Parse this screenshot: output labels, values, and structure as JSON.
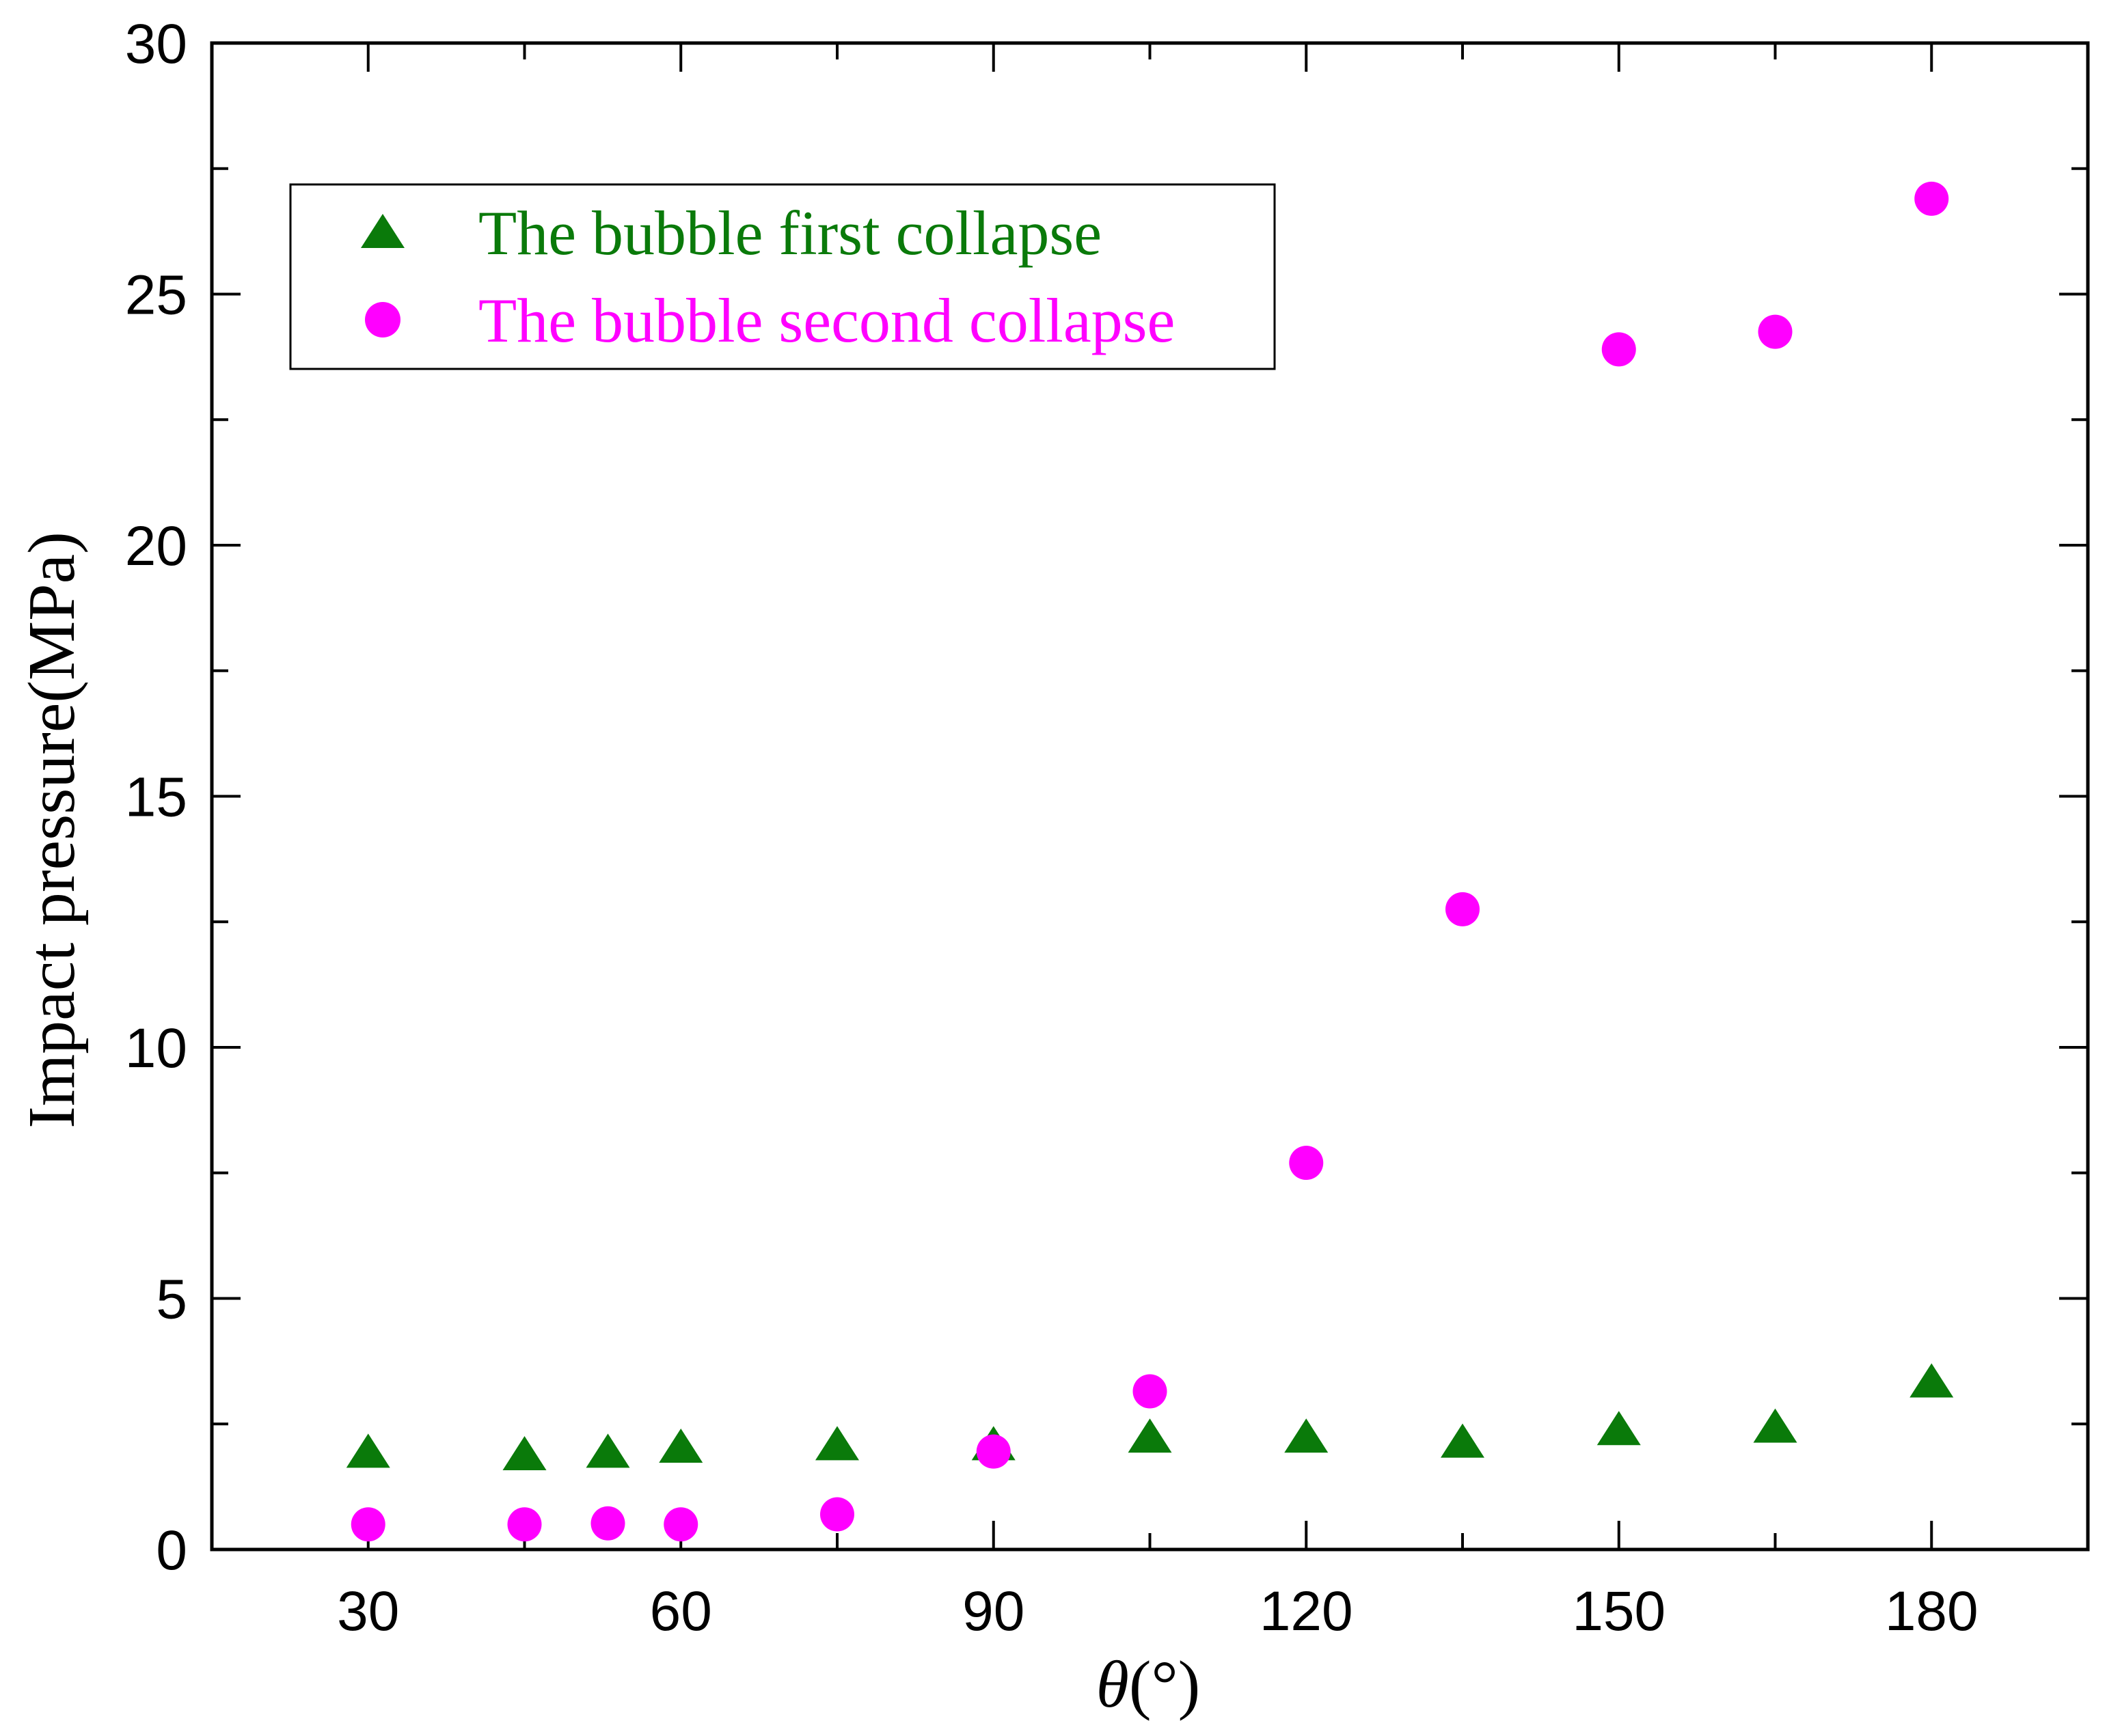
{
  "chart_data": {
    "type": "scatter",
    "title": "",
    "xlabel": "θ(°)",
    "xlabel_symbol": "θ",
    "xlabel_unit": "(°)",
    "ylabel": "Impact pressure(MPa)",
    "xlim": [
      15,
      195
    ],
    "ylim": [
      0,
      30
    ],
    "xticks": [
      30,
      60,
      90,
      120,
      150,
      180
    ],
    "yticks": [
      0,
      5,
      10,
      15,
      20,
      25,
      30
    ],
    "grid": false,
    "legend_position": "top-left",
    "series": [
      {
        "name": "The bubble first collapse",
        "marker": "triangle",
        "color": "#0a7a0a",
        "x": [
          30,
          45,
          53,
          60,
          75,
          90,
          105,
          120,
          135,
          150,
          165,
          180
        ],
        "y": [
          1.9,
          1.85,
          1.9,
          2.0,
          2.05,
          2.05,
          2.2,
          2.2,
          2.1,
          2.35,
          2.4,
          3.3
        ]
      },
      {
        "name": "The bubble second collapse",
        "marker": "circle",
        "color": "#ff00ff",
        "x": [
          30,
          45,
          53,
          60,
          75,
          90,
          105,
          120,
          135,
          150,
          165,
          180
        ],
        "y": [
          0.5,
          0.5,
          0.52,
          0.5,
          0.7,
          1.95,
          3.15,
          7.7,
          12.75,
          23.9,
          24.25,
          26.9
        ]
      }
    ]
  }
}
